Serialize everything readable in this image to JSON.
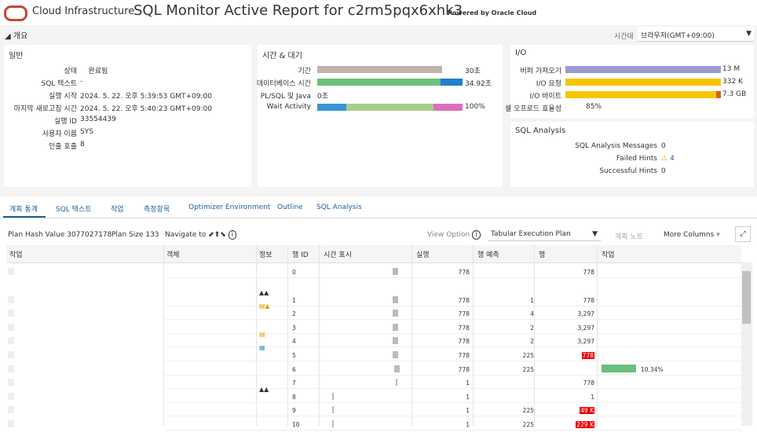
{
  "header": {
    "brand": "Cloud Infrastructure",
    "title": "SQL Monitor Active Report for c2rm5pqx6xhk3",
    "powered": "Powered by Oracle Cloud"
  },
  "overview": {
    "label": "개요",
    "timezone_label": "시간대",
    "timezone": "브라우저(GMT+09:00)"
  },
  "general": {
    "title": "일반",
    "rows": [
      [
        "상태",
        "완료됨"
      ],
      [
        "SQL 텍스트",
        "-"
      ],
      [
        "실행 시작",
        "2024. 5. 22. 오후 5:39:53 GMT+09:00"
      ],
      [
        "마지막 새로고침 시간",
        "2024. 5. 22. 오후 5:40:23 GMT+09:00"
      ],
      [
        "실행 ID",
        "33554439"
      ],
      [
        "사용자 이름",
        "SYS"
      ],
      [
        "인출 호출",
        "8"
      ]
    ]
  },
  "time_wait": {
    "title": "시간 & 대기",
    "rows": [
      [
        "기간",
        "30초"
      ],
      [
        "데이터베이스 시간",
        "34.92초"
      ],
      [
        "PL/SQL 및 Java",
        "0초"
      ],
      [
        "Wait Activity",
        "100%"
      ]
    ]
  },
  "io": {
    "title": "I/O",
    "rows": [
      [
        "버퍼 가져오기",
        "13 M"
      ],
      [
        "I/O 요청",
        "332 K"
      ],
      [
        "I/O 바이트",
        "7.3 GB"
      ],
      [
        "셀 오프로드 효율성",
        "85%"
      ]
    ]
  },
  "sql_analysis": {
    "title": "SQL Analysis",
    "rows": [
      [
        "SQL Analysis Messages",
        "0"
      ],
      [
        "Failed Hints",
        "4"
      ],
      [
        "Successful Hints",
        "0"
      ]
    ]
  },
  "tabs": [
    "계획 통계",
    "SQL 텍스트",
    "작업",
    "측정항목",
    "Optimizer Environment",
    "Outline",
    "SQL Analysis"
  ],
  "toolbar": {
    "plan_hash": "Plan Hash Value 3077027178",
    "plan_size": "Plan Size 133",
    "navigate": "Navigate to",
    "view_option": "View Option",
    "plan_select": "Tabular Execution Plan",
    "plan_notes": "계획 노트",
    "more_columns": "More Columns"
  },
  "table": {
    "headers": [
      "작업",
      "객체",
      "정보",
      "행 ID",
      "시간 표시",
      "실행",
      "행 예측",
      "행",
      "작업"
    ],
    "rows": [
      [
        "0",
        "778",
        "",
        "778"
      ],
      [
        "1",
        "778",
        "1",
        "778"
      ],
      [
        "2",
        "778",
        "4",
        "3,297"
      ],
      [
        "3",
        "778",
        "2",
        "3,297"
      ],
      [
        "4",
        "778",
        "2",
        "3,297"
      ],
      [
        "5",
        "778",
        "225",
        "778"
      ],
      [
        "6",
        "778",
        "225",
        "",
        "10.34%"
      ],
      [
        "7",
        "1",
        "",
        "778"
      ],
      [
        "8",
        "1",
        "",
        "1"
      ],
      [
        "9",
        "1",
        "225",
        "49 K"
      ],
      [
        "10",
        "1",
        "225",
        "229 K"
      ]
    ]
  }
}
